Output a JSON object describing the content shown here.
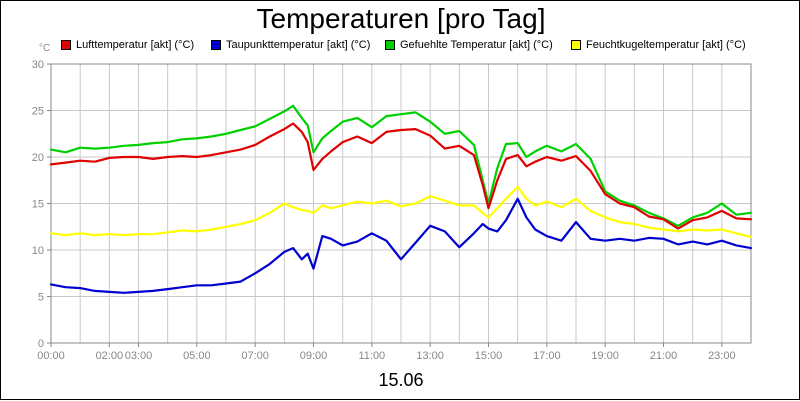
{
  "chart_data": {
    "type": "line",
    "title": "Temperaturen [pro Tag]",
    "ylabel": "°C",
    "xlabel": "15.06",
    "ylim": [
      0,
      30
    ],
    "xlim": [
      0,
      24
    ],
    "yticks": [
      0,
      5,
      10,
      15,
      20,
      25,
      30
    ],
    "xticks": [
      {
        "v": 0,
        "label": "00:00"
      },
      {
        "v": 2,
        "label": "02:00"
      },
      {
        "v": 3,
        "label": "03:00"
      },
      {
        "v": 5,
        "label": "05:00"
      },
      {
        "v": 7,
        "label": "07:00"
      },
      {
        "v": 9,
        "label": "09:00"
      },
      {
        "v": 11,
        "label": "11:00"
      },
      {
        "v": 13,
        "label": "13:00"
      },
      {
        "v": 15,
        "label": "15:00"
      },
      {
        "v": 17,
        "label": "17:00"
      },
      {
        "v": 19,
        "label": "19:00"
      },
      {
        "v": 21,
        "label": "21:00"
      },
      {
        "v": 23,
        "label": "23:00"
      }
    ],
    "grid": true,
    "x": [
      0,
      0.5,
      1,
      1.5,
      2,
      2.5,
      3,
      3.5,
      4,
      4.5,
      5,
      5.5,
      6,
      6.5,
      7,
      7.5,
      8,
      8.3,
      8.6,
      8.8,
      9,
      9.3,
      9.6,
      10,
      10.5,
      11,
      11.5,
      12,
      12.5,
      13,
      13.5,
      14,
      14.5,
      14.8,
      15,
      15.3,
      15.6,
      16,
      16.3,
      16.6,
      17,
      17.5,
      18,
      18.5,
      19,
      19.5,
      20,
      20.5,
      21,
      21.5,
      22,
      22.5,
      23,
      23.5,
      24
    ],
    "series": [
      {
        "name": "Lufttemperatur [akt] (°C)",
        "color": "#e00000",
        "values": [
          19.2,
          19.4,
          19.6,
          19.5,
          19.9,
          20.0,
          20.0,
          19.8,
          20.0,
          20.1,
          20.0,
          20.2,
          20.5,
          20.8,
          21.3,
          22.2,
          23.0,
          23.6,
          22.7,
          21.6,
          18.6,
          19.8,
          20.6,
          21.6,
          22.2,
          21.5,
          22.7,
          22.9,
          23.0,
          22.3,
          20.9,
          21.2,
          20.2,
          17.0,
          14.5,
          17.5,
          19.8,
          20.2,
          19.0,
          19.5,
          20.0,
          19.6,
          20.1,
          18.5,
          16.0,
          15.0,
          14.6,
          13.6,
          13.3,
          12.3,
          13.2,
          13.5,
          14.2,
          13.4,
          13.3
        ]
      },
      {
        "name": "Taupunkttemperatur [akt] (°C)",
        "color": "#0000d0",
        "values": [
          6.3,
          6.0,
          5.9,
          5.6,
          5.5,
          5.4,
          5.5,
          5.6,
          5.8,
          6.0,
          6.2,
          6.2,
          6.4,
          6.6,
          7.5,
          8.5,
          9.8,
          10.2,
          9.0,
          9.6,
          8.0,
          11.5,
          11.2,
          10.5,
          10.9,
          11.8,
          11.0,
          9.0,
          10.8,
          12.6,
          12.0,
          10.3,
          11.8,
          12.8,
          12.3,
          12.0,
          13.2,
          15.5,
          13.5,
          12.2,
          11.5,
          11.0,
          13.0,
          11.2,
          11.0,
          11.2,
          11.0,
          11.3,
          11.2,
          10.6,
          10.9,
          10.6,
          11.0,
          10.5,
          10.2
        ]
      },
      {
        "name": "Gefuehlte Temperatur [akt] (°C)",
        "color": "#00d000",
        "values": [
          20.8,
          20.5,
          21.0,
          20.9,
          21.0,
          21.2,
          21.3,
          21.5,
          21.6,
          21.9,
          22.0,
          22.2,
          22.5,
          22.9,
          23.3,
          24.1,
          24.9,
          25.5,
          24.2,
          23.4,
          20.5,
          22.0,
          22.8,
          23.8,
          24.2,
          23.2,
          24.4,
          24.6,
          24.8,
          23.8,
          22.5,
          22.8,
          21.3,
          17.5,
          15.0,
          18.8,
          21.4,
          21.5,
          20.0,
          20.6,
          21.2,
          20.6,
          21.4,
          19.8,
          16.3,
          15.3,
          14.8,
          14.0,
          13.4,
          12.6,
          13.5,
          14.0,
          15.0,
          13.8,
          14.0
        ]
      },
      {
        "name": "Feuchtkugeltemperatur [akt] (°C)",
        "color": "#ffff00",
        "values": [
          11.8,
          11.6,
          11.8,
          11.6,
          11.7,
          11.6,
          11.7,
          11.7,
          11.9,
          12.1,
          12.0,
          12.2,
          12.5,
          12.8,
          13.2,
          14.0,
          15.0,
          14.6,
          14.3,
          14.2,
          14.0,
          14.8,
          14.5,
          14.8,
          15.2,
          15.0,
          15.3,
          14.7,
          15.0,
          15.8,
          15.3,
          14.8,
          14.8,
          14.0,
          13.5,
          14.5,
          15.5,
          16.8,
          15.5,
          14.8,
          15.2,
          14.6,
          15.5,
          14.2,
          13.5,
          13.0,
          12.8,
          12.4,
          12.2,
          12.0,
          12.2,
          12.1,
          12.2,
          11.8,
          11.4
        ]
      }
    ]
  }
}
